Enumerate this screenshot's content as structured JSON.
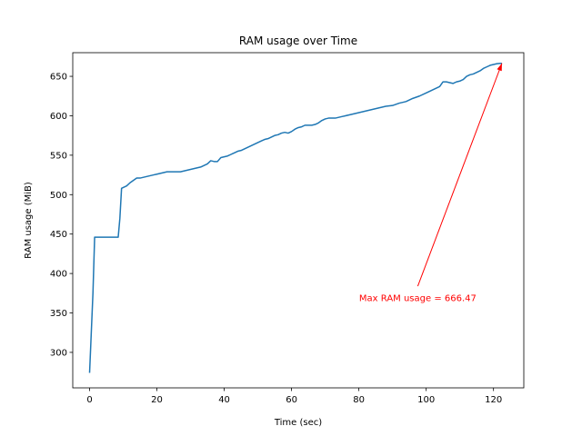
{
  "chart_data": {
    "type": "line",
    "title": "RAM usage over Time",
    "xlabel": "Time (sec)",
    "ylabel": "RAM usage (MiB)",
    "xlim": [
      -5,
      129
    ],
    "ylim": [
      255,
      680
    ],
    "xticks": [
      0,
      20,
      40,
      60,
      80,
      100,
      120
    ],
    "yticks": [
      300,
      350,
      400,
      450,
      500,
      550,
      600,
      650
    ],
    "grid": false,
    "series": [
      {
        "color": "#1f77b4",
        "x": [
          0,
          1,
          1.5,
          2,
          3,
          4,
          5,
          6,
          7,
          8,
          8.5,
          9,
          9.5,
          10,
          11,
          12,
          13,
          14,
          15,
          16,
          17,
          18,
          19,
          20,
          21,
          22,
          23,
          24,
          25,
          26,
          27,
          28,
          29,
          30,
          31,
          32,
          33,
          34,
          35,
          36,
          37,
          38,
          39,
          40,
          41,
          42,
          43,
          44,
          45,
          46,
          47,
          48,
          49,
          50,
          51,
          52,
          53,
          54,
          55,
          56,
          57,
          58,
          59,
          60,
          61,
          62,
          63,
          64,
          65,
          66,
          67,
          68,
          69,
          70,
          71,
          72,
          73,
          74,
          75,
          76,
          77,
          78,
          79,
          80,
          82,
          84,
          86,
          88,
          90,
          92,
          94,
          96,
          98,
          100,
          102,
          104,
          105,
          106,
          108,
          109,
          110,
          111,
          112,
          113,
          114,
          115,
          116,
          117,
          118,
          119,
          120,
          121,
          122,
          122.5
        ],
        "y": [
          274,
          375,
          446,
          446,
          446,
          446,
          446,
          446,
          446,
          446,
          446,
          470,
          508,
          509,
          511,
          515,
          518,
          521,
          521,
          522,
          523,
          524,
          525,
          526,
          527,
          528,
          529,
          529,
          529,
          529,
          529,
          530,
          531,
          532,
          533,
          534,
          535,
          537,
          539,
          543,
          542,
          542,
          547,
          548,
          549,
          551,
          553,
          555,
          556,
          558,
          560,
          562,
          564,
          566,
          568,
          570,
          571,
          573,
          575,
          576,
          578,
          579,
          578,
          580,
          583,
          585,
          586,
          588,
          588,
          588,
          589,
          591,
          594,
          596,
          597,
          597,
          597,
          598,
          599,
          600,
          601,
          602,
          603,
          604,
          606,
          608,
          610,
          612,
          613,
          616,
          618,
          622,
          625,
          629,
          633,
          637,
          643,
          643,
          641,
          643,
          644,
          646,
          650,
          652,
          653,
          655,
          657,
          660,
          662,
          664,
          665,
          666,
          666.47,
          666.47
        ]
      }
    ],
    "annotations": [
      {
        "text": "Max RAM usage = 666.47",
        "color": "#ff0000",
        "text_x": 97.5,
        "text_y": 369,
        "arrow_to": [
          122.5,
          666.47
        ]
      }
    ]
  }
}
